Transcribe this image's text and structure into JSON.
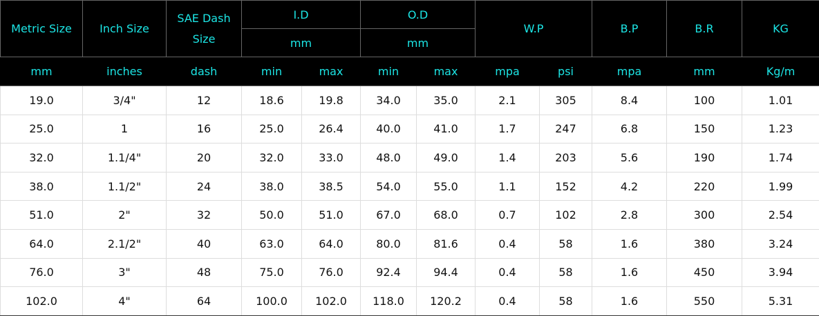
{
  "table": {
    "header": [
      [
        "Metric Size",
        "Inch Size",
        "SAE Dash Size",
        "I.D",
        "O.D",
        "W.P",
        "B.P",
        "B.R",
        "KG"
      ],
      [
        "mm",
        "mm"
      ]
    ],
    "units": [
      "mm",
      "inches",
      "dash",
      "min",
      "max",
      "min",
      "max",
      "mpa",
      "psi",
      "mpa",
      "mm",
      "Kg/m"
    ],
    "rows": [
      [
        "19.0",
        "3/4\"",
        "12",
        "18.6",
        "19.8",
        "34.0",
        "35.0",
        "2.1",
        "305",
        "8.4",
        "100",
        "1.01"
      ],
      [
        "25.0",
        "1",
        "16",
        "25.0",
        "26.4",
        "40.0",
        "41.0",
        "1.7",
        "247",
        "6.8",
        "150",
        "1.23"
      ],
      [
        "32.0",
        "1.1/4\"",
        "20",
        "32.0",
        "33.0",
        "48.0",
        "49.0",
        "1.4",
        "203",
        "5.6",
        "190",
        "1.74"
      ],
      [
        "38.0",
        "1.1/2\"",
        "24",
        "38.0",
        "38.5",
        "54.0",
        "55.0",
        "1.1",
        "152",
        "4.2",
        "220",
        "1.99"
      ],
      [
        "51.0",
        "2\"",
        "32",
        "50.0",
        "51.0",
        "67.0",
        "68.0",
        "0.7",
        "102",
        "2.8",
        "300",
        "2.54"
      ],
      [
        "64.0",
        "2.1/2\"",
        "40",
        "63.0",
        "64.0",
        "80.0",
        "81.6",
        "0.4",
        "58",
        "1.6",
        "380",
        "3.24"
      ],
      [
        "76.0",
        "3\"",
        "48",
        "75.0",
        "76.0",
        "92.4",
        "94.4",
        "0.4",
        "58",
        "1.6",
        "450",
        "3.94"
      ],
      [
        "102.0",
        "4\"",
        "64",
        "100.0",
        "102.0",
        "118.0",
        "120.2",
        "0.4",
        "58",
        "1.6",
        "550",
        "5.31"
      ]
    ]
  }
}
